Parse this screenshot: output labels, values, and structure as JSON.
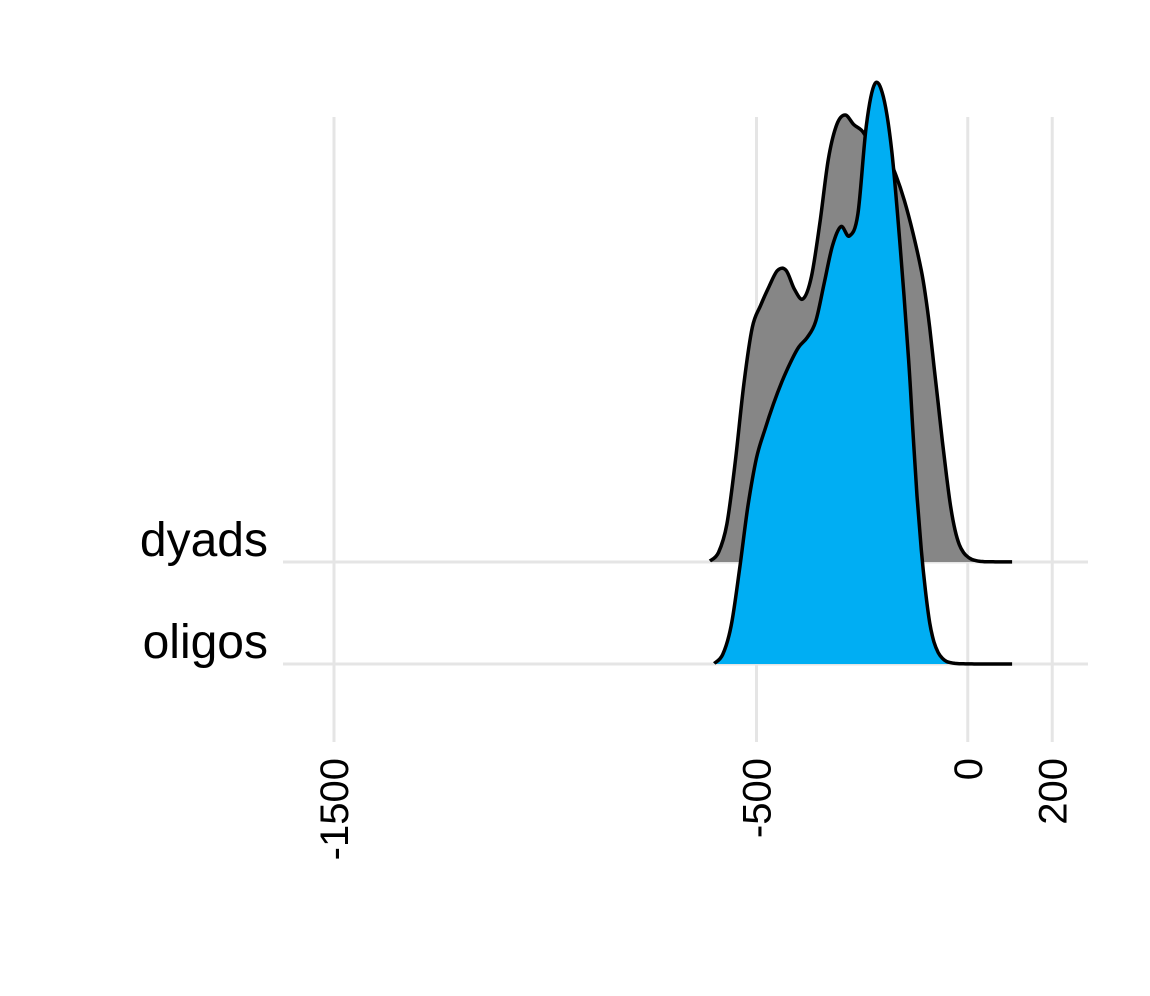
{
  "chart_data": {
    "type": "area",
    "subtype": "ridgeline density",
    "title": "",
    "xlabel": "",
    "ylabel": "",
    "xlim": [
      -1550,
      240
    ],
    "x_ticks": [
      -1500,
      -500,
      0,
      200
    ],
    "x_tick_labels": [
      "-1500",
      "-500",
      "0",
      "200"
    ],
    "grid": true,
    "legend": "none",
    "categories": [
      "oligos",
      "dyads"
    ],
    "series": [
      {
        "name": "dyads",
        "fill": "#868686",
        "x": [
          -610,
          -590,
          -570,
          -550,
          -530,
          -510,
          -490,
          -470,
          -450,
          -430,
          -410,
          -390,
          -370,
          -350,
          -330,
          -310,
          -290,
          -270,
          -250,
          -230,
          -210,
          -190,
          -170,
          -150,
          -130,
          -110,
          -100,
          -90,
          -80,
          -70,
          -60,
          -50,
          -40,
          -30,
          -20,
          -10,
          0,
          10,
          20,
          30,
          40,
          50,
          60,
          70,
          80,
          90,
          105
        ],
        "y": [
          0.003,
          0.03,
          0.12,
          0.32,
          0.56,
          0.74,
          0.81,
          0.87,
          0.92,
          0.92,
          0.86,
          0.83,
          0.9,
          1.07,
          1.27,
          1.38,
          1.41,
          1.38,
          1.36,
          1.32,
          1.31,
          1.28,
          1.22,
          1.14,
          1.04,
          0.92,
          0.84,
          0.74,
          0.62,
          0.5,
          0.38,
          0.27,
          0.17,
          0.1,
          0.055,
          0.03,
          0.016,
          0.008,
          0.004,
          0.002,
          0.001,
          0.0008,
          0.0006,
          0.0004,
          0.0003,
          0.0002,
          0.0002
        ]
      },
      {
        "name": "oligos",
        "fill": "#00AEF3",
        "x": [
          -600,
          -580,
          -560,
          -540,
          -520,
          -500,
          -480,
          -460,
          -440,
          -420,
          -400,
          -380,
          -360,
          -340,
          -320,
          -300,
          -280,
          -260,
          -240,
          -220,
          -200,
          -180,
          -160,
          -140,
          -130,
          -120,
          -110,
          -100,
          -90,
          -80,
          -70,
          -60,
          -50,
          -40,
          -30,
          -20,
          -10,
          0,
          10,
          20,
          30,
          40,
          50,
          60,
          70,
          80,
          90,
          105
        ],
        "y": [
          0.002,
          0.03,
          0.12,
          0.3,
          0.5,
          0.65,
          0.74,
          0.82,
          0.89,
          0.95,
          1.0,
          1.03,
          1.08,
          1.2,
          1.32,
          1.38,
          1.35,
          1.42,
          1.7,
          1.83,
          1.79,
          1.62,
          1.32,
          0.96,
          0.74,
          0.53,
          0.36,
          0.23,
          0.13,
          0.07,
          0.036,
          0.018,
          0.008,
          0.004,
          0.002,
          0.001,
          0.0005,
          0.0003,
          0.0002,
          0.0001,
          0.0001,
          0.0001,
          0.0001,
          0.0001,
          0.0001,
          0.0001,
          0.0001,
          0.0001
        ]
      }
    ]
  }
}
